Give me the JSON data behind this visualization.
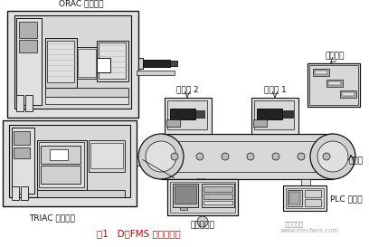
{
  "title_caption": "图1   D－FMS 的布局总图",
  "caption_color": "#cc0000",
  "watermark_text": "www.elecfans.com",
  "watermark_color": "#aaaaaa",
  "logo_text": "电子发烧友",
  "bg_color": "#ffffff",
  "labels": {
    "orac": "ORAC 数控车床",
    "triac": "TRIAC 数控铣床",
    "robot2": "机械手 2",
    "robot1": "机械手 1",
    "warehouse": "物料仓库",
    "conveyor": "传送带",
    "computer": "主控计算机",
    "plc": "PLC 控制盒"
  }
}
